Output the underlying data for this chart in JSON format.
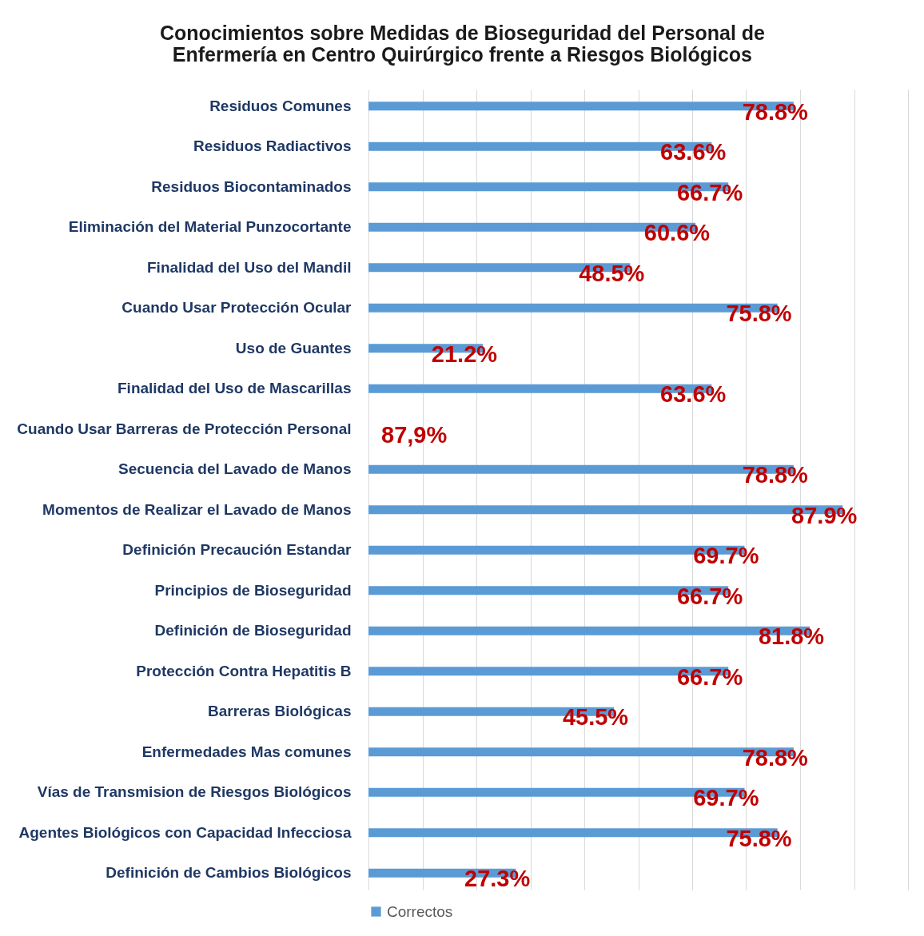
{
  "chart_data": {
    "type": "bar",
    "orientation": "horizontal",
    "title": "Conocimientos sobre Medidas de Bioseguridad del Personal de\nEnfermería en Centro Quirúrgico frente a Riesgos Biológicos",
    "categories": [
      "Residuos Comunes",
      "Residuos Radiactivos",
      "Residuos Biocontaminados",
      "Eliminación del Material Punzocortante",
      "Finalidad del Uso del Mandil",
      "Cuando Usar Protección Ocular",
      "Uso de Guantes",
      "Finalidad del Uso de Mascarillas",
      "Cuando Usar Barreras de Protección Personal",
      "Secuencia del Lavado de Manos",
      "Momentos de Realizar el Lavado de Manos",
      "Definición Precaución Estandar",
      "Principios de Bioseguridad",
      "Definición de Bioseguridad",
      "Protección Contra Hepatitis B",
      "Barreras Biológicas",
      "Enfermedades Mas comunes",
      "Vías de Transmision de Riesgos Biológicos",
      "Agentes Biológicos con Capacidad Infecciosa",
      "Definición de Cambios Biológicos"
    ],
    "series": [
      {
        "name": "Correctos",
        "color": "#5b9bd5",
        "values": [
          78.8,
          63.6,
          66.7,
          60.6,
          48.5,
          75.8,
          21.2,
          63.6,
          null,
          78.8,
          87.9,
          69.7,
          66.7,
          81.8,
          66.7,
          45.5,
          78.8,
          69.7,
          75.8,
          27.3
        ],
        "value_labels": [
          "78.8%",
          "63.6%",
          "66.7%",
          "60.6%",
          "48.5%",
          "75.8%",
          "21.2%",
          "63.6%",
          "87,9%",
          "78.8%",
          "87.9%",
          "69.7%",
          "66.7%",
          "81.8%",
          "66.7%",
          "45.5%",
          "78.8%",
          "69.7%",
          "75.8%",
          "27.3%"
        ]
      }
    ],
    "xlim": [
      0,
      100
    ],
    "xticks": [
      {
        "value": 0,
        "label": null
      },
      {
        "value": 10,
        "label": null
      },
      {
        "value": 20,
        "label": null
      },
      {
        "value": 30,
        "label": null
      },
      {
        "value": 40,
        "label": null
      },
      {
        "value": 50,
        "label": null
      },
      {
        "value": 60,
        "label": null
      },
      {
        "value": 70,
        "label": null
      },
      {
        "value": 80,
        "label": null
      },
      {
        "value": 90,
        "label": null
      },
      {
        "value": 100,
        "label": null
      }
    ],
    "grid": "x",
    "legend": "bottom",
    "tick_labels": "y"
  }
}
